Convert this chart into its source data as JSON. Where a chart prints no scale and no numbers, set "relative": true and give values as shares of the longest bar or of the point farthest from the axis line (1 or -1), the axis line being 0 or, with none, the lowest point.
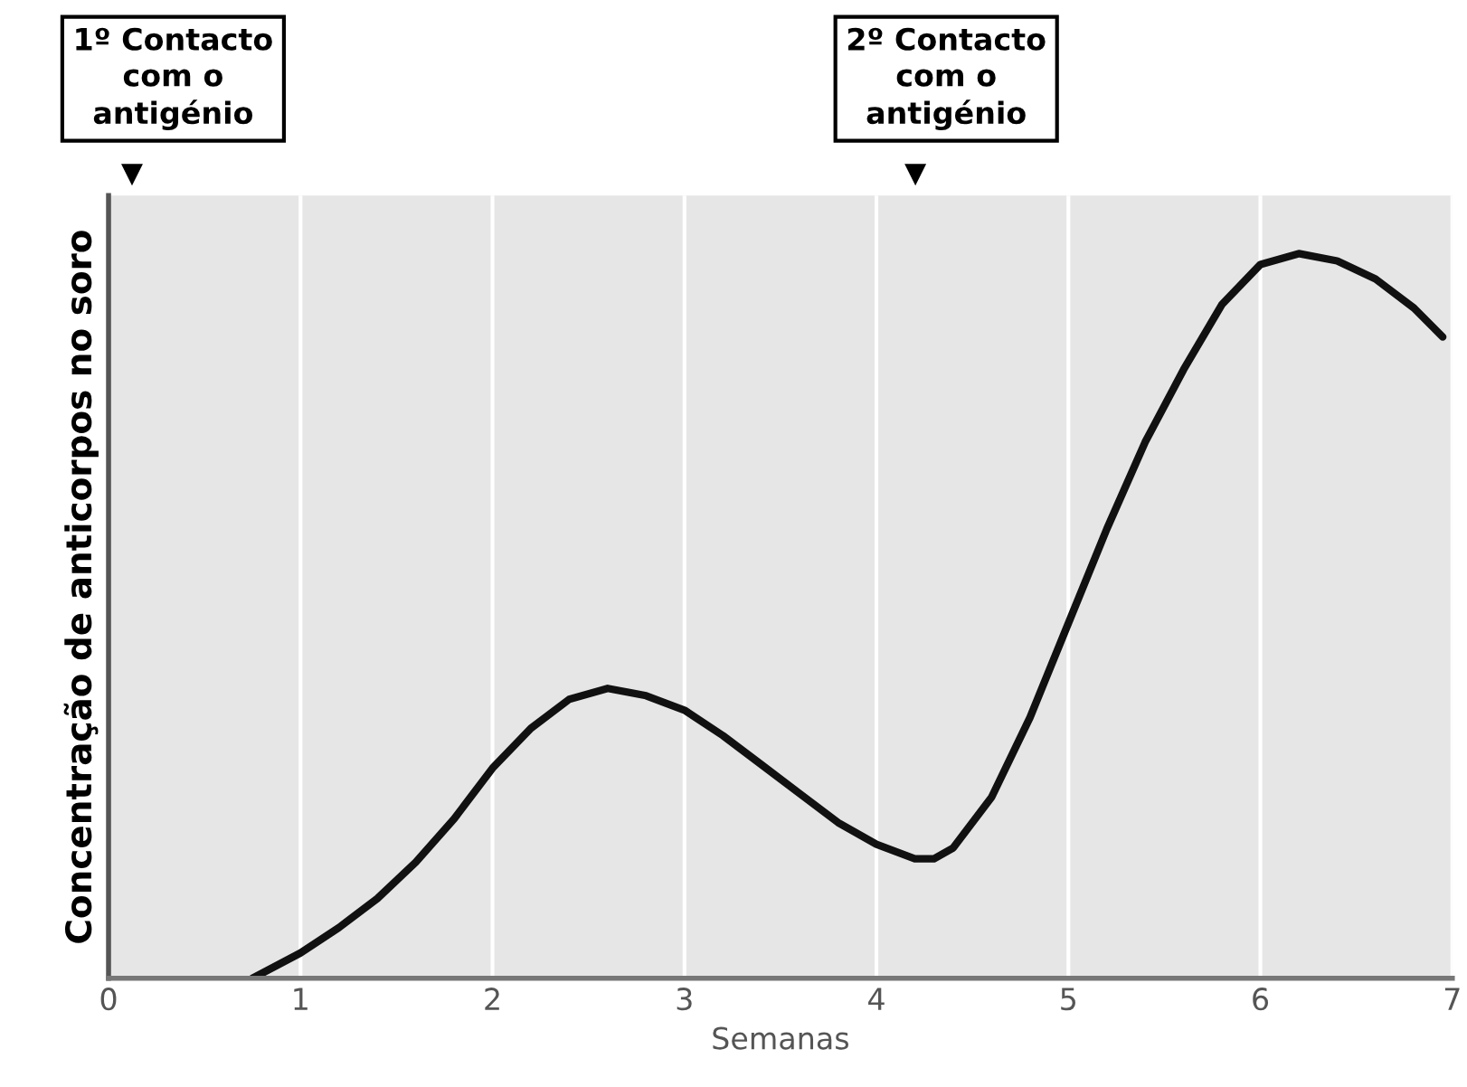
{
  "chart_data": {
    "type": "line",
    "xlabel": "Semanas",
    "ylabel": "Concentração de anticorpos no soro",
    "relative": true,
    "x": [
      0.75,
      1.0,
      1.2,
      1.4,
      1.6,
      1.8,
      2.0,
      2.2,
      2.4,
      2.6,
      2.8,
      3.0,
      3.2,
      3.4,
      3.6,
      3.8,
      4.0,
      4.2,
      4.3,
      4.4,
      4.6,
      4.8,
      5.0,
      5.2,
      5.4,
      5.6,
      5.8,
      6.0,
      6.2,
      6.4,
      6.6,
      6.8,
      6.95
    ],
    "series": [
      {
        "color": "#111111",
        "values": [
          0,
          0.035,
          0.07,
          0.11,
          0.16,
          0.22,
          0.29,
          0.345,
          0.385,
          0.4,
          0.39,
          0.37,
          0.335,
          0.295,
          0.255,
          0.215,
          0.185,
          0.165,
          0.165,
          0.18,
          0.25,
          0.36,
          0.49,
          0.62,
          0.74,
          0.84,
          0.93,
          0.985,
          1.0,
          0.99,
          0.965,
          0.925,
          0.885
        ]
      }
    ],
    "xlim": [
      0,
      7
    ],
    "xticks": [
      0,
      1,
      2,
      3,
      4,
      5,
      6,
      7
    ],
    "grid": "x",
    "annotations": [
      "1º Contacto\ncom o\nantigénio",
      "2º Contacto\ncom o\nantigénio"
    ]
  }
}
